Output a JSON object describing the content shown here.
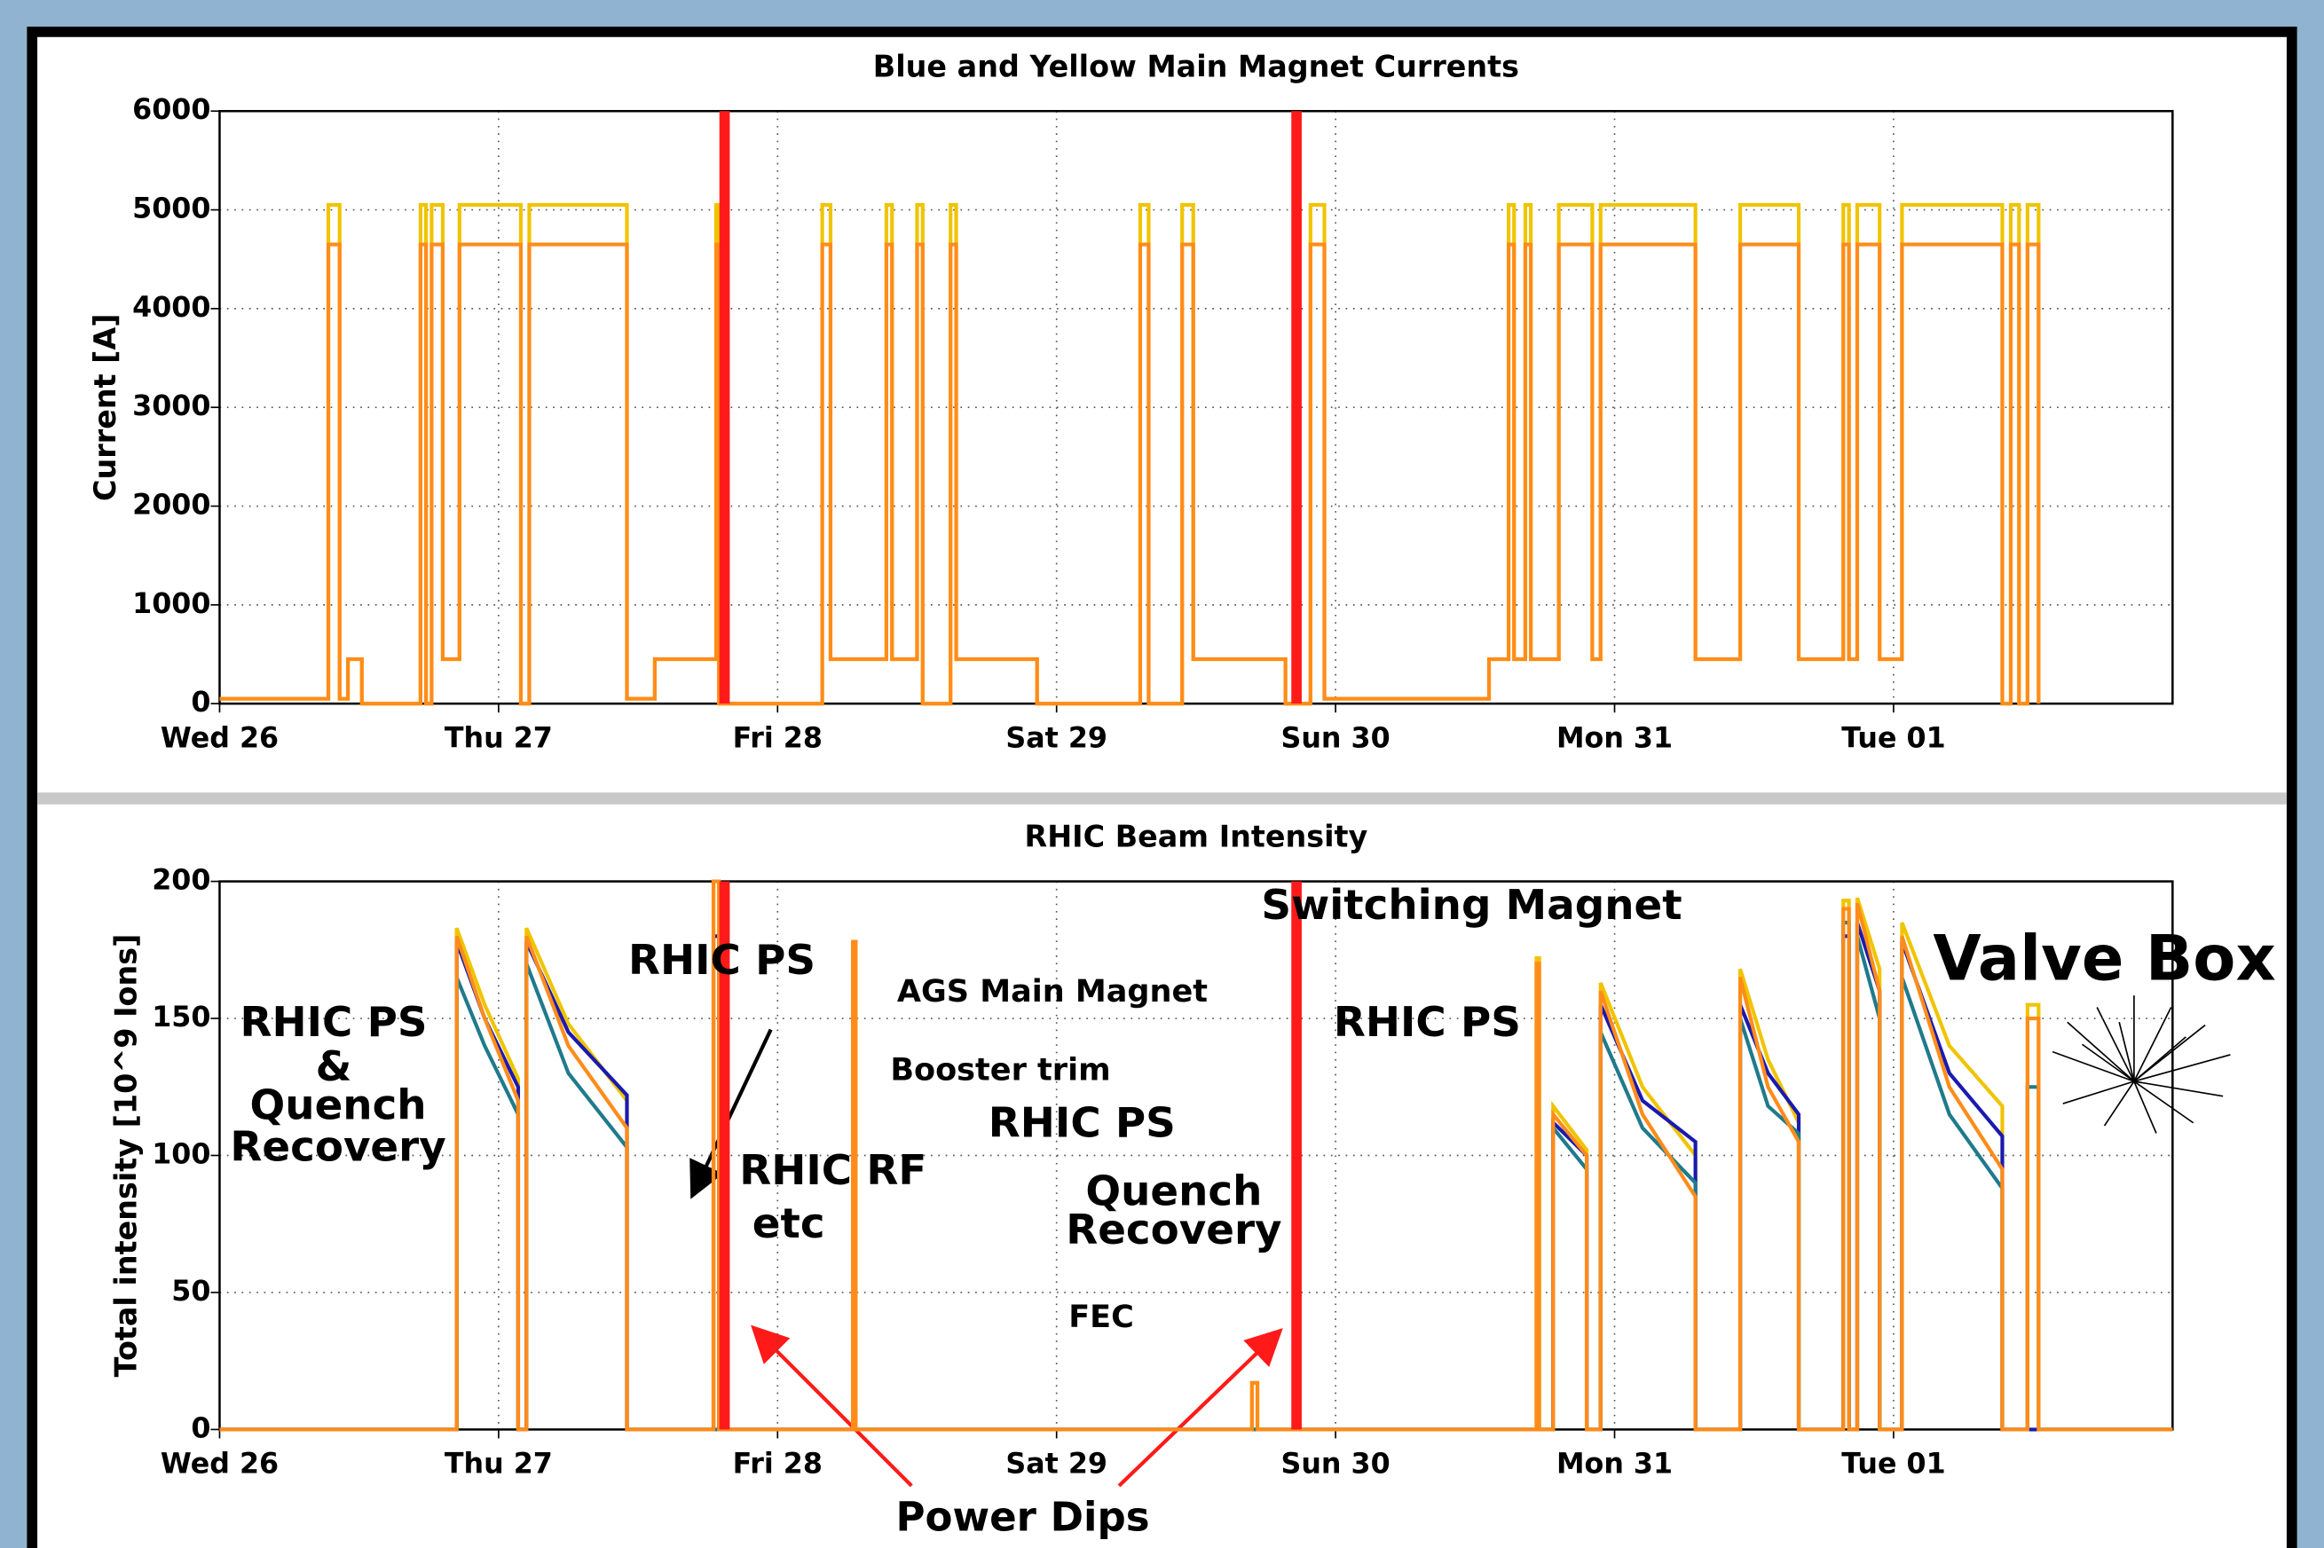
{
  "chart_data": [
    {
      "type": "line",
      "title": "Blue and Yellow Main Magnet Currents",
      "ylabel": "Current [A]",
      "xlim": [
        0,
        7
      ],
      "xticks": [
        {
          "value": 0,
          "label": "Wed 26"
        },
        {
          "value": 1,
          "label": "Thu 27"
        },
        {
          "value": 2,
          "label": "Fri 28"
        },
        {
          "value": 3,
          "label": "Sat 29"
        },
        {
          "value": 4,
          "label": "Sun 30"
        },
        {
          "value": 5,
          "label": "Mon 31"
        },
        {
          "value": 6,
          "label": "Tue 01"
        }
      ],
      "ylim": [
        0,
        6000
      ],
      "yticks": [
        0,
        1000,
        2000,
        3000,
        4000,
        5000,
        6000
      ],
      "grid": true,
      "vlines": [
        1.81,
        3.86
      ],
      "vline_color": "#ff1a1a",
      "series": [
        {
          "color": "#f0c400",
          "x": [
            0,
            0.39,
            0.39,
            0.43,
            0.43,
            0.46,
            0.46,
            0.51,
            0.51,
            0.72,
            0.72,
            0.74,
            0.74,
            0.76,
            0.76,
            0.8,
            0.8,
            0.86,
            0.86,
            1.08,
            1.08,
            1.11,
            1.11,
            1.46,
            1.46,
            1.56,
            1.56,
            1.78,
            1.78,
            1.79,
            1.79,
            2.16,
            2.16,
            2.19,
            2.19,
            2.39,
            2.39,
            2.41,
            2.41,
            2.5,
            2.5,
            2.52,
            2.52,
            2.62,
            2.62,
            2.64,
            2.64,
            2.93,
            2.93,
            3.3,
            3.3,
            3.33,
            3.33,
            3.45,
            3.45,
            3.49,
            3.49,
            3.82,
            3.82,
            3.91,
            3.91,
            3.96,
            3.96,
            4.55,
            4.55,
            4.62,
            4.62,
            4.64,
            4.64,
            4.68,
            4.68,
            4.7,
            4.7,
            4.8,
            4.8,
            4.92,
            4.92,
            4.95,
            4.95,
            5.29,
            5.29,
            5.45,
            5.45,
            5.66,
            5.66,
            5.82,
            5.82,
            5.84,
            5.84,
            5.87,
            5.87,
            5.95,
            5.95,
            6.03,
            6.03,
            6.39,
            6.39,
            6.42,
            6.42,
            6.45,
            6.45,
            6.48,
            6.48,
            6.52,
            6.52
          ],
          "values": [
            50,
            50,
            5050,
            5050,
            50,
            50,
            450,
            450,
            0,
            0,
            5050,
            5050,
            0,
            0,
            5050,
            5050,
            450,
            450,
            5050,
            5050,
            0,
            0,
            5050,
            5050,
            50,
            50,
            450,
            450,
            5050,
            5050,
            0,
            0,
            5050,
            5050,
            450,
            450,
            5050,
            5050,
            450,
            450,
            5050,
            5050,
            0,
            0,
            5050,
            5050,
            450,
            450,
            0,
            0,
            5050,
            5050,
            0,
            0,
            5050,
            5050,
            450,
            450,
            0,
            0,
            5050,
            5050,
            50,
            50,
            450,
            450,
            5050,
            5050,
            450,
            450,
            5050,
            5050,
            450,
            450,
            5050,
            5050,
            450,
            450,
            5050,
            5050,
            450,
            450,
            5050,
            5050,
            450,
            450,
            5050,
            5050,
            450,
            450,
            5050,
            5050,
            450,
            450,
            5050,
            5050,
            0,
            0,
            5050,
            5050,
            0,
            0,
            5050,
            5050,
            0
          ]
        },
        {
          "color": "#ff8c1a",
          "x": [
            0,
            0.39,
            0.39,
            0.43,
            0.43,
            0.46,
            0.46,
            0.51,
            0.51,
            0.72,
            0.72,
            0.74,
            0.74,
            0.76,
            0.76,
            0.8,
            0.8,
            0.86,
            0.86,
            1.08,
            1.08,
            1.11,
            1.11,
            1.46,
            1.46,
            1.56,
            1.56,
            1.78,
            1.78,
            1.79,
            1.79,
            2.16,
            2.16,
            2.19,
            2.19,
            2.39,
            2.39,
            2.41,
            2.41,
            2.5,
            2.5,
            2.52,
            2.52,
            2.62,
            2.62,
            2.64,
            2.64,
            2.93,
            2.93,
            3.3,
            3.3,
            3.33,
            3.33,
            3.45,
            3.45,
            3.49,
            3.49,
            3.82,
            3.82,
            3.91,
            3.91,
            3.96,
            3.96,
            4.55,
            4.55,
            4.62,
            4.62,
            4.64,
            4.64,
            4.68,
            4.68,
            4.7,
            4.7,
            4.8,
            4.8,
            4.92,
            4.92,
            4.95,
            4.95,
            5.29,
            5.29,
            5.45,
            5.45,
            5.66,
            5.66,
            5.82,
            5.82,
            5.84,
            5.84,
            5.87,
            5.87,
            5.95,
            5.95,
            6.03,
            6.03,
            6.39,
            6.39,
            6.42,
            6.42,
            6.45,
            6.45,
            6.48,
            6.48,
            6.52,
            6.52
          ],
          "values": [
            50,
            50,
            4650,
            4650,
            50,
            50,
            450,
            450,
            0,
            0,
            4650,
            4650,
            0,
            0,
            4650,
            4650,
            450,
            450,
            4650,
            4650,
            0,
            0,
            4650,
            4650,
            50,
            50,
            450,
            450,
            4650,
            4650,
            0,
            0,
            4650,
            4650,
            450,
            450,
            4650,
            4650,
            450,
            450,
            4650,
            4650,
            0,
            0,
            4650,
            4650,
            450,
            450,
            0,
            0,
            4650,
            4650,
            0,
            0,
            4650,
            4650,
            450,
            450,
            0,
            0,
            4650,
            4650,
            50,
            50,
            450,
            450,
            4650,
            4650,
            450,
            450,
            4650,
            4650,
            450,
            450,
            4650,
            4650,
            450,
            450,
            4650,
            4650,
            450,
            450,
            4650,
            4650,
            450,
            450,
            4650,
            4650,
            450,
            450,
            4650,
            4650,
            450,
            450,
            4650,
            4650,
            0,
            0,
            4650,
            4650,
            0,
            0,
            4650,
            4650,
            0
          ]
        }
      ]
    },
    {
      "type": "line",
      "title": "RHIC Beam Intensity",
      "ylabel": "Total intensity [10^9 Ions]",
      "xlim": [
        0,
        7
      ],
      "xticks": [
        {
          "value": 0,
          "label": "Wed 26"
        },
        {
          "value": 1,
          "label": "Thu 27"
        },
        {
          "value": 2,
          "label": "Fri 28"
        },
        {
          "value": 3,
          "label": "Sat 29"
        },
        {
          "value": 4,
          "label": "Sun 30"
        },
        {
          "value": 5,
          "label": "Mon 31"
        },
        {
          "value": 6,
          "label": "Tue 01"
        }
      ],
      "ylim": [
        0,
        200
      ],
      "yticks": [
        0,
        50,
        100,
        150,
        200
      ],
      "grid": true,
      "vlines": [
        1.81,
        3.86
      ],
      "vline_color": "#ff1a1a",
      "annotations": [
        "RHIC PS",
        "&",
        "Quench",
        "Recovery",
        "RHIC PS",
        "AGS Main Magnet",
        "Booster trim",
        "RHIC PS",
        "RHIC RF",
        "etc",
        "Quench",
        "Recovery",
        "FEC",
        "Switching Magnet",
        "RHIC PS",
        "Valve Box",
        "Power Dips"
      ],
      "series": [
        {
          "color": "#f0c400",
          "x": [
            0,
            0.85,
            0.85,
            0.95,
            1.07,
            1.07,
            1.1,
            1.1,
            1.25,
            1.46,
            1.46,
            1.77,
            1.77,
            1.79,
            1.79,
            2.27,
            2.27,
            2.28,
            2.28,
            3.7,
            3.7,
            3.72,
            3.72,
            4.72,
            4.72,
            4.73,
            4.73,
            4.78,
            4.78,
            4.9,
            4.9,
            4.95,
            4.95,
            5.1,
            5.29,
            5.29,
            5.45,
            5.45,
            5.55,
            5.66,
            5.66,
            5.82,
            5.82,
            5.84,
            5.84,
            5.87,
            5.87,
            5.95,
            5.95,
            6.03,
            6.03,
            6.2,
            6.39,
            6.39,
            6.48,
            6.48,
            6.52,
            6.52,
            7
          ],
          "values": [
            0,
            0,
            183,
            155,
            128,
            0,
            0,
            183,
            148,
            120,
            0,
            0,
            200,
            200,
            0,
            0,
            178,
            178,
            0,
            0,
            17,
            17,
            0,
            0,
            172,
            172,
            0,
            0,
            118,
            102,
            0,
            0,
            163,
            125,
            100,
            0,
            0,
            168,
            135,
            112,
            0,
            0,
            193,
            193,
            0,
            0,
            194,
            168,
            0,
            0,
            185,
            140,
            118,
            0,
            0,
            155,
            155,
            0,
            0
          ]
        },
        {
          "color": "#1a1ab0",
          "x": [
            0,
            0.85,
            0.85,
            0.95,
            1.07,
            1.07,
            1.1,
            1.1,
            1.25,
            1.46,
            1.46,
            1.77,
            1.77,
            1.79,
            1.79,
            2.27,
            2.27,
            2.28,
            2.28,
            3.7,
            3.7,
            3.72,
            3.72,
            4.72,
            4.72,
            4.73,
            4.73,
            4.78,
            4.78,
            4.9,
            4.9,
            4.95,
            4.95,
            5.1,
            5.29,
            5.29,
            5.45,
            5.45,
            5.55,
            5.66,
            5.66,
            5.82,
            5.82,
            5.84,
            5.84,
            5.87,
            5.87,
            5.95,
            5.95,
            6.03,
            6.03,
            6.2,
            6.39,
            6.39,
            6.48,
            6.48,
            6.52,
            6.52,
            7
          ],
          "values": [
            0,
            0,
            178,
            150,
            125,
            0,
            0,
            178,
            145,
            122,
            0,
            0,
            180,
            180,
            0,
            0,
            0,
            0,
            0,
            0,
            0,
            0,
            0,
            0,
            0,
            0,
            0,
            0,
            112,
            100,
            0,
            0,
            155,
            120,
            105,
            0,
            0,
            155,
            130,
            115,
            0,
            0,
            180,
            180,
            0,
            0,
            185,
            160,
            0,
            0,
            178,
            130,
            107,
            0,
            0,
            0,
            0,
            0,
            0
          ]
        },
        {
          "color": "#1f7a8c",
          "x": [
            0,
            0.85,
            0.85,
            0.95,
            1.07,
            1.07,
            1.1,
            1.1,
            1.25,
            1.46,
            1.46,
            1.77,
            1.77,
            1.79,
            1.79,
            2.27,
            2.27,
            2.28,
            2.28,
            3.7,
            3.7,
            3.72,
            3.72,
            4.72,
            4.72,
            4.73,
            4.73,
            4.78,
            4.78,
            4.9,
            4.9,
            4.95,
            4.95,
            5.1,
            5.29,
            5.29,
            5.45,
            5.45,
            5.55,
            5.66,
            5.66,
            5.82,
            5.82,
            5.84,
            5.84,
            5.87,
            5.87,
            5.95,
            5.95,
            6.03,
            6.03,
            6.2,
            6.39,
            6.39,
            6.48,
            6.48,
            6.52,
            6.52,
            7
          ],
          "values": [
            0,
            0,
            165,
            140,
            115,
            0,
            0,
            170,
            130,
            103,
            0,
            0,
            0,
            0,
            0,
            0,
            0,
            0,
            0,
            0,
            0,
            0,
            0,
            0,
            0,
            0,
            0,
            0,
            110,
            95,
            0,
            0,
            145,
            110,
            90,
            0,
            0,
            150,
            118,
            108,
            0,
            0,
            185,
            185,
            0,
            0,
            180,
            150,
            0,
            0,
            165,
            115,
            88,
            0,
            0,
            125,
            125,
            0,
            0
          ]
        },
        {
          "color": "#ff8c1a",
          "x": [
            0,
            0.85,
            0.85,
            0.95,
            1.07,
            1.07,
            1.1,
            1.1,
            1.25,
            1.46,
            1.46,
            1.77,
            1.77,
            1.79,
            1.79,
            2.27,
            2.27,
            2.28,
            2.28,
            3.7,
            3.7,
            3.72,
            3.72,
            4.72,
            4.72,
            4.73,
            4.73,
            4.78,
            4.78,
            4.9,
            4.9,
            4.95,
            4.95,
            5.1,
            5.29,
            5.29,
            5.45,
            5.45,
            5.55,
            5.66,
            5.66,
            5.82,
            5.82,
            5.84,
            5.84,
            5.87,
            5.87,
            5.95,
            5.95,
            6.03,
            6.03,
            6.2,
            6.39,
            6.39,
            6.48,
            6.48,
            6.52,
            6.52,
            7
          ],
          "values": [
            0,
            0,
            180,
            150,
            120,
            0,
            0,
            180,
            140,
            110,
            0,
            0,
            200,
            200,
            0,
            0,
            178,
            178,
            0,
            0,
            17,
            17,
            0,
            0,
            170,
            170,
            0,
            0,
            115,
            100,
            0,
            0,
            160,
            115,
            85,
            0,
            0,
            165,
            125,
            105,
            0,
            0,
            190,
            190,
            0,
            0,
            192,
            160,
            0,
            0,
            180,
            125,
            95,
            0,
            0,
            150,
            150,
            0,
            0
          ]
        }
      ]
    }
  ]
}
